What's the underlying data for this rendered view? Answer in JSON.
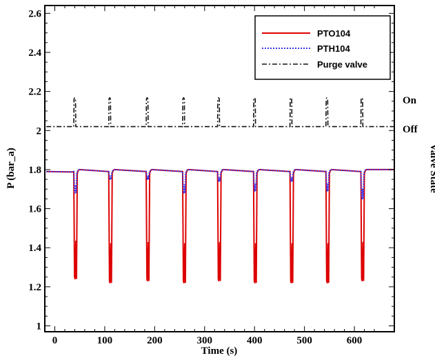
{
  "chart_data": {
    "type": "line",
    "xlabel": "Time (s)",
    "ylabel": "P (bar_a)",
    "right_label": "Valve State",
    "right_ticks": [
      "On",
      "Off"
    ],
    "xlim": [
      -20,
      680
    ],
    "ylim": [
      0.97,
      2.64
    ],
    "xticks": [
      0,
      100,
      200,
      300,
      400,
      500,
      600
    ],
    "yticks": [
      1,
      1.2,
      1.4,
      1.6,
      1.8,
      2,
      2.2,
      2.4,
      2.6
    ],
    "ytick_labels": [
      "1",
      "1.2",
      "1.4",
      "1.6",
      "1.8",
      "2",
      "2.2",
      "2.4",
      "2.6"
    ],
    "grid": false,
    "legend_position": "top-right",
    "purge_times": [
      40,
      110,
      185,
      258,
      328,
      400,
      473,
      545,
      615
    ],
    "purge_levels": {
      "off": 2.02,
      "on": 2.17
    },
    "series": [
      {
        "name": "PTO104",
        "color": "#dd0000",
        "style": "solid",
        "baseline": 1.8,
        "minima": [
          1.24,
          1.22,
          1.23,
          1.22,
          1.23,
          1.22,
          1.22,
          1.22,
          1.23
        ]
      },
      {
        "name": "PTH104",
        "color": "#3333ee",
        "style": "dotted",
        "baseline": 1.8,
        "minima": [
          1.68,
          1.75,
          1.75,
          1.68,
          1.74,
          1.69,
          1.74,
          1.69,
          1.65
        ]
      },
      {
        "name": "Purge valve",
        "color": "#111111",
        "style": "dashdot",
        "baseline": 2.02,
        "minima": []
      }
    ]
  }
}
